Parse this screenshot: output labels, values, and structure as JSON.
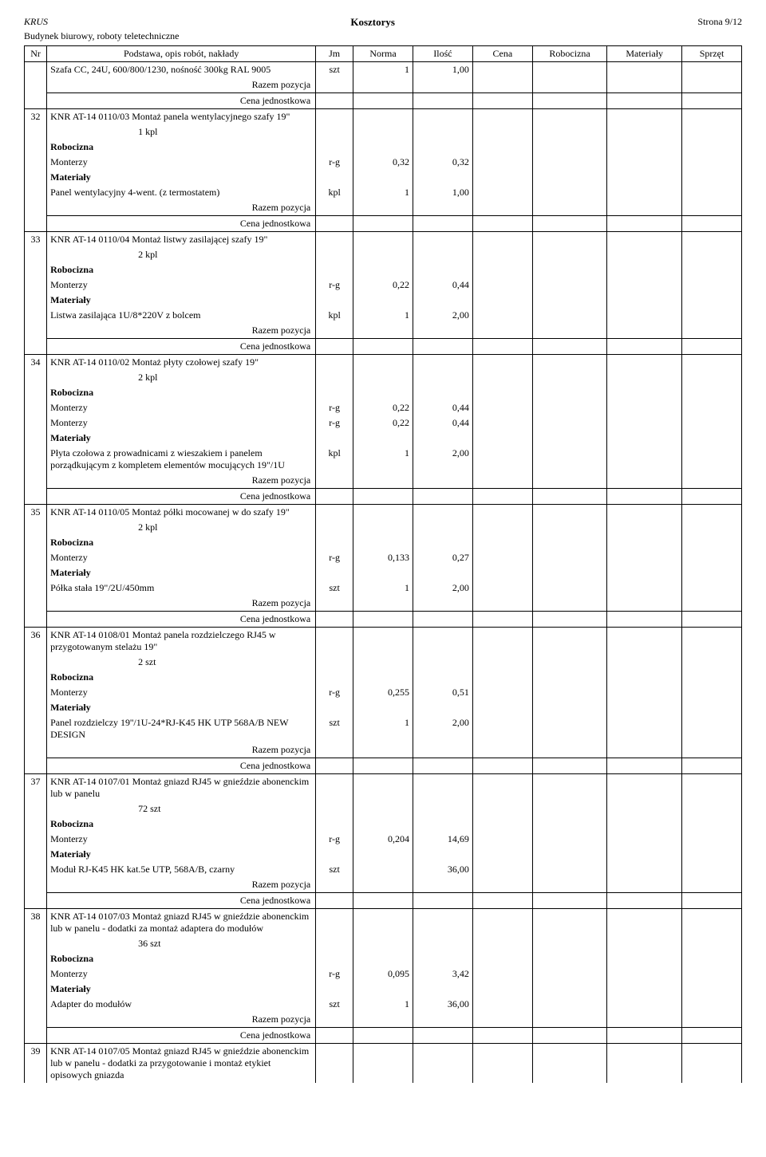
{
  "header": {
    "org": "KRUS",
    "title": "Kosztorys",
    "page": "Strona 9/12",
    "subtitle": "Budynek biurowy, roboty teletechniczne"
  },
  "columns": {
    "nr": "Nr",
    "desc": "Podstawa, opis robót, nakłady",
    "jm": "Jm",
    "norma": "Norma",
    "ilosc": "Ilość",
    "cena": "Cena",
    "robocizna": "Robocizna",
    "materialy": "Materiały",
    "sprzet": "Sprzęt"
  },
  "labels": {
    "razem": "Razem pozycja",
    "cenaj": "Cena jednostkowa",
    "robocizna": "Robocizna",
    "materialy": "Materiały",
    "monterzy": "Monterzy"
  },
  "rows": [
    {
      "nr": "",
      "items": [
        {
          "desc": "Szafa CC, 24U, 600/800/1230, nośność 300kg RAL 9005",
          "jm": "szt",
          "norma": "1",
          "ilosc": "1,00"
        }
      ]
    },
    {
      "nr": "32",
      "title": "KNR AT-14 0110/03  Montaż panela wentylacyjnego szafy 19\"",
      "qty": "1  kpl",
      "rob": [
        {
          "desc": "Monterzy",
          "jm": "r-g",
          "norma": "0,32",
          "ilosc": "0,32"
        }
      ],
      "mat": [
        {
          "desc": "Panel wentylacyjny 4-went. (z termostatem)",
          "jm": "kpl",
          "norma": "1",
          "ilosc": "1,00"
        }
      ]
    },
    {
      "nr": "33",
      "title": "KNR AT-14 0110/04  Montaż listwy zasilającej szafy 19\"",
      "qty": "2  kpl",
      "rob": [
        {
          "desc": "Monterzy",
          "jm": "r-g",
          "norma": "0,22",
          "ilosc": "0,44"
        }
      ],
      "mat": [
        {
          "desc": "Listwa zasilająca 1U/8*220V z bolcem",
          "jm": "kpl",
          "norma": "1",
          "ilosc": "2,00"
        }
      ]
    },
    {
      "nr": "34",
      "title": "KNR AT-14 0110/02  Montaż płyty czołowej szafy 19\"",
      "qty": "2  kpl",
      "rob": [
        {
          "desc": "Monterzy",
          "jm": "r-g",
          "norma": "0,22",
          "ilosc": "0,44"
        },
        {
          "desc": "Monterzy",
          "jm": "r-g",
          "norma": "0,22",
          "ilosc": "0,44"
        }
      ],
      "mat": [
        {
          "desc": "Płyta czołowa z prowadnicami z wieszakiem i panelem porządkującym z kompletem elementów mocujących 19\"/1U",
          "jm": "kpl",
          "norma": "1",
          "ilosc": "2,00"
        }
      ]
    },
    {
      "nr": "35",
      "title": "KNR AT-14 0110/05  Montaż półki mocowanej w  do szafy 19\"",
      "qty": "2  kpl",
      "rob": [
        {
          "desc": "Monterzy",
          "jm": "r-g",
          "norma": "0,133",
          "ilosc": "0,27"
        }
      ],
      "mat": [
        {
          "desc": "Półka stała 19\"/2U/450mm",
          "jm": "szt",
          "norma": "1",
          "ilosc": "2,00"
        }
      ]
    },
    {
      "nr": "36",
      "title": "KNR AT-14 0108/01  Montaż panela rozdzielczego RJ45 w przygotowanym stelażu 19\"",
      "qty": "2  szt",
      "rob": [
        {
          "desc": "Monterzy",
          "jm": "r-g",
          "norma": "0,255",
          "ilosc": "0,51"
        }
      ],
      "mat": [
        {
          "desc": "Panel rozdzielczy 19''/1U-24*RJ-K45 HK UTP 568A/B NEW DESIGN",
          "jm": "szt",
          "norma": "1",
          "ilosc": "2,00"
        }
      ]
    },
    {
      "nr": "37",
      "title": "KNR AT-14 0107/01  Montaż gniazd RJ45 w gnieździe abonenckim lub w panelu",
      "qty": "72  szt",
      "rob": [
        {
          "desc": "Monterzy",
          "jm": "r-g",
          "norma": "0,204",
          "ilosc": "14,69"
        }
      ],
      "mat": [
        {
          "desc": "Moduł RJ-K45 HK kat.5e UTP, 568A/B, czarny",
          "jm": "szt",
          "norma": "",
          "ilosc": "36,00"
        }
      ]
    },
    {
      "nr": "38",
      "title": "KNR AT-14 0107/03  Montaż gniazd RJ45 w gnieździe abonenckim lub w panelu - dodatki za montaż adaptera do modułów",
      "qty": "36  szt",
      "rob": [
        {
          "desc": "Monterzy",
          "jm": "r-g",
          "norma": "0,095",
          "ilosc": "3,42"
        }
      ],
      "mat": [
        {
          "desc": "Adapter do modułów",
          "jm": "szt",
          "norma": "1",
          "ilosc": "36,00"
        }
      ]
    },
    {
      "nr": "39",
      "title": "KNR AT-14 0107/05  Montaż gniazd RJ45 w gnieździe abonenckim lub w panelu - dodatki za przygotowanie i montaż etykiet opisowych gniazda",
      "noFooter": true
    }
  ]
}
